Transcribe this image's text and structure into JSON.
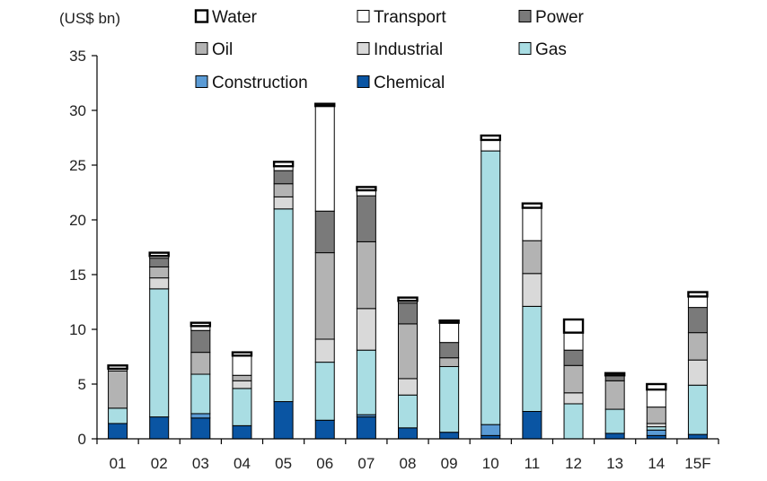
{
  "chart_data": {
    "type": "bar",
    "stacked": true,
    "unit_label": "(US$ bn)",
    "categories": [
      "01",
      "02",
      "03",
      "04",
      "05",
      "06",
      "07",
      "08",
      "09",
      "10",
      "11",
      "12",
      "13",
      "14",
      "15F"
    ],
    "ylim": [
      0,
      35
    ],
    "yticks": [
      0,
      5,
      10,
      15,
      20,
      25,
      30,
      35
    ],
    "grid": false,
    "legend_position": "top",
    "series": [
      {
        "name": "Chemical",
        "color": "#0a55a3",
        "values": [
          1.4,
          2.0,
          1.9,
          1.2,
          3.4,
          1.7,
          2.0,
          1.0,
          0.6,
          0.3,
          2.5,
          0.0,
          0.5,
          0.3,
          0.4
        ]
      },
      {
        "name": "Construction",
        "color": "#5b9bd5",
        "values": [
          0.0,
          0.0,
          0.4,
          0.0,
          0.0,
          0.0,
          0.2,
          0.0,
          0.0,
          1.0,
          0.0,
          0.0,
          0.0,
          0.5,
          0.0
        ]
      },
      {
        "name": "Gas",
        "color": "#a9dde3",
        "values": [
          1.4,
          11.7,
          3.6,
          3.4,
          17.6,
          5.3,
          5.9,
          3.0,
          6.0,
          25.0,
          9.6,
          3.2,
          2.2,
          0.3,
          4.5
        ]
      },
      {
        "name": "Industrial",
        "color": "#d9d9d9",
        "values": [
          0.0,
          1.0,
          0.0,
          0.7,
          1.1,
          2.1,
          3.8,
          1.5,
          0.0,
          0.0,
          3.0,
          1.0,
          0.0,
          0.3,
          2.3
        ]
      },
      {
        "name": "Oil",
        "color": "#b3b3b3",
        "values": [
          3.4,
          1.0,
          2.0,
          0.5,
          1.2,
          7.9,
          6.1,
          5.0,
          0.8,
          0.0,
          3.0,
          2.5,
          2.6,
          1.5,
          2.5
        ]
      },
      {
        "name": "Power",
        "color": "#7a7a7a",
        "values": [
          0.0,
          0.8,
          2.0,
          0.0,
          1.2,
          3.8,
          4.2,
          1.9,
          1.4,
          0.0,
          0.0,
          1.4,
          0.5,
          0.0,
          2.3
        ]
      },
      {
        "name": "Transport",
        "color": "#ffffff",
        "values": [
          0.2,
          0.2,
          0.4,
          1.8,
          0.4,
          9.6,
          0.5,
          0.2,
          1.8,
          1.0,
          3.0,
          1.6,
          0.0,
          1.6,
          1.0
        ]
      },
      {
        "name": "Water",
        "color": "#ffffff",
        "values": [
          0.3,
          0.3,
          0.3,
          0.3,
          0.4,
          0.2,
          0.3,
          0.3,
          0.2,
          0.4,
          0.4,
          1.2,
          0.2,
          0.5,
          0.4
        ]
      }
    ],
    "legend_order": [
      "Water",
      "Transport",
      "Power",
      "Oil",
      "Industrial",
      "Gas",
      "Construction",
      "Chemical"
    ]
  }
}
